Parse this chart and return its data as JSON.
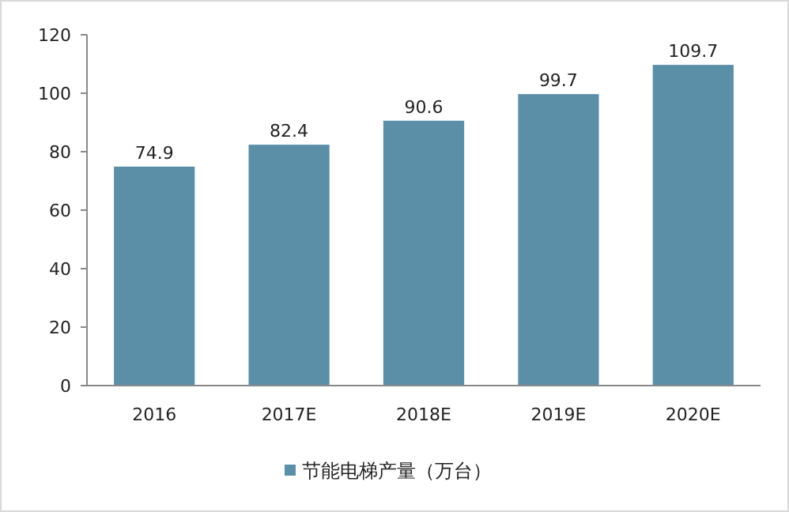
{
  "chart_data": {
    "type": "bar",
    "categories": [
      "2016",
      "2017E",
      "2018E",
      "2019E",
      "2020E"
    ],
    "series": [
      {
        "name": "节能电梯产量（万台）",
        "color": "#5b8fa8",
        "values": [
          74.9,
          82.4,
          90.6,
          99.7,
          109.7
        ]
      }
    ],
    "ylim": [
      0,
      120
    ],
    "yticks": [
      0,
      20,
      40,
      60,
      80,
      100,
      120
    ],
    "data_labels": true,
    "grid": false,
    "legend": "bottom"
  }
}
